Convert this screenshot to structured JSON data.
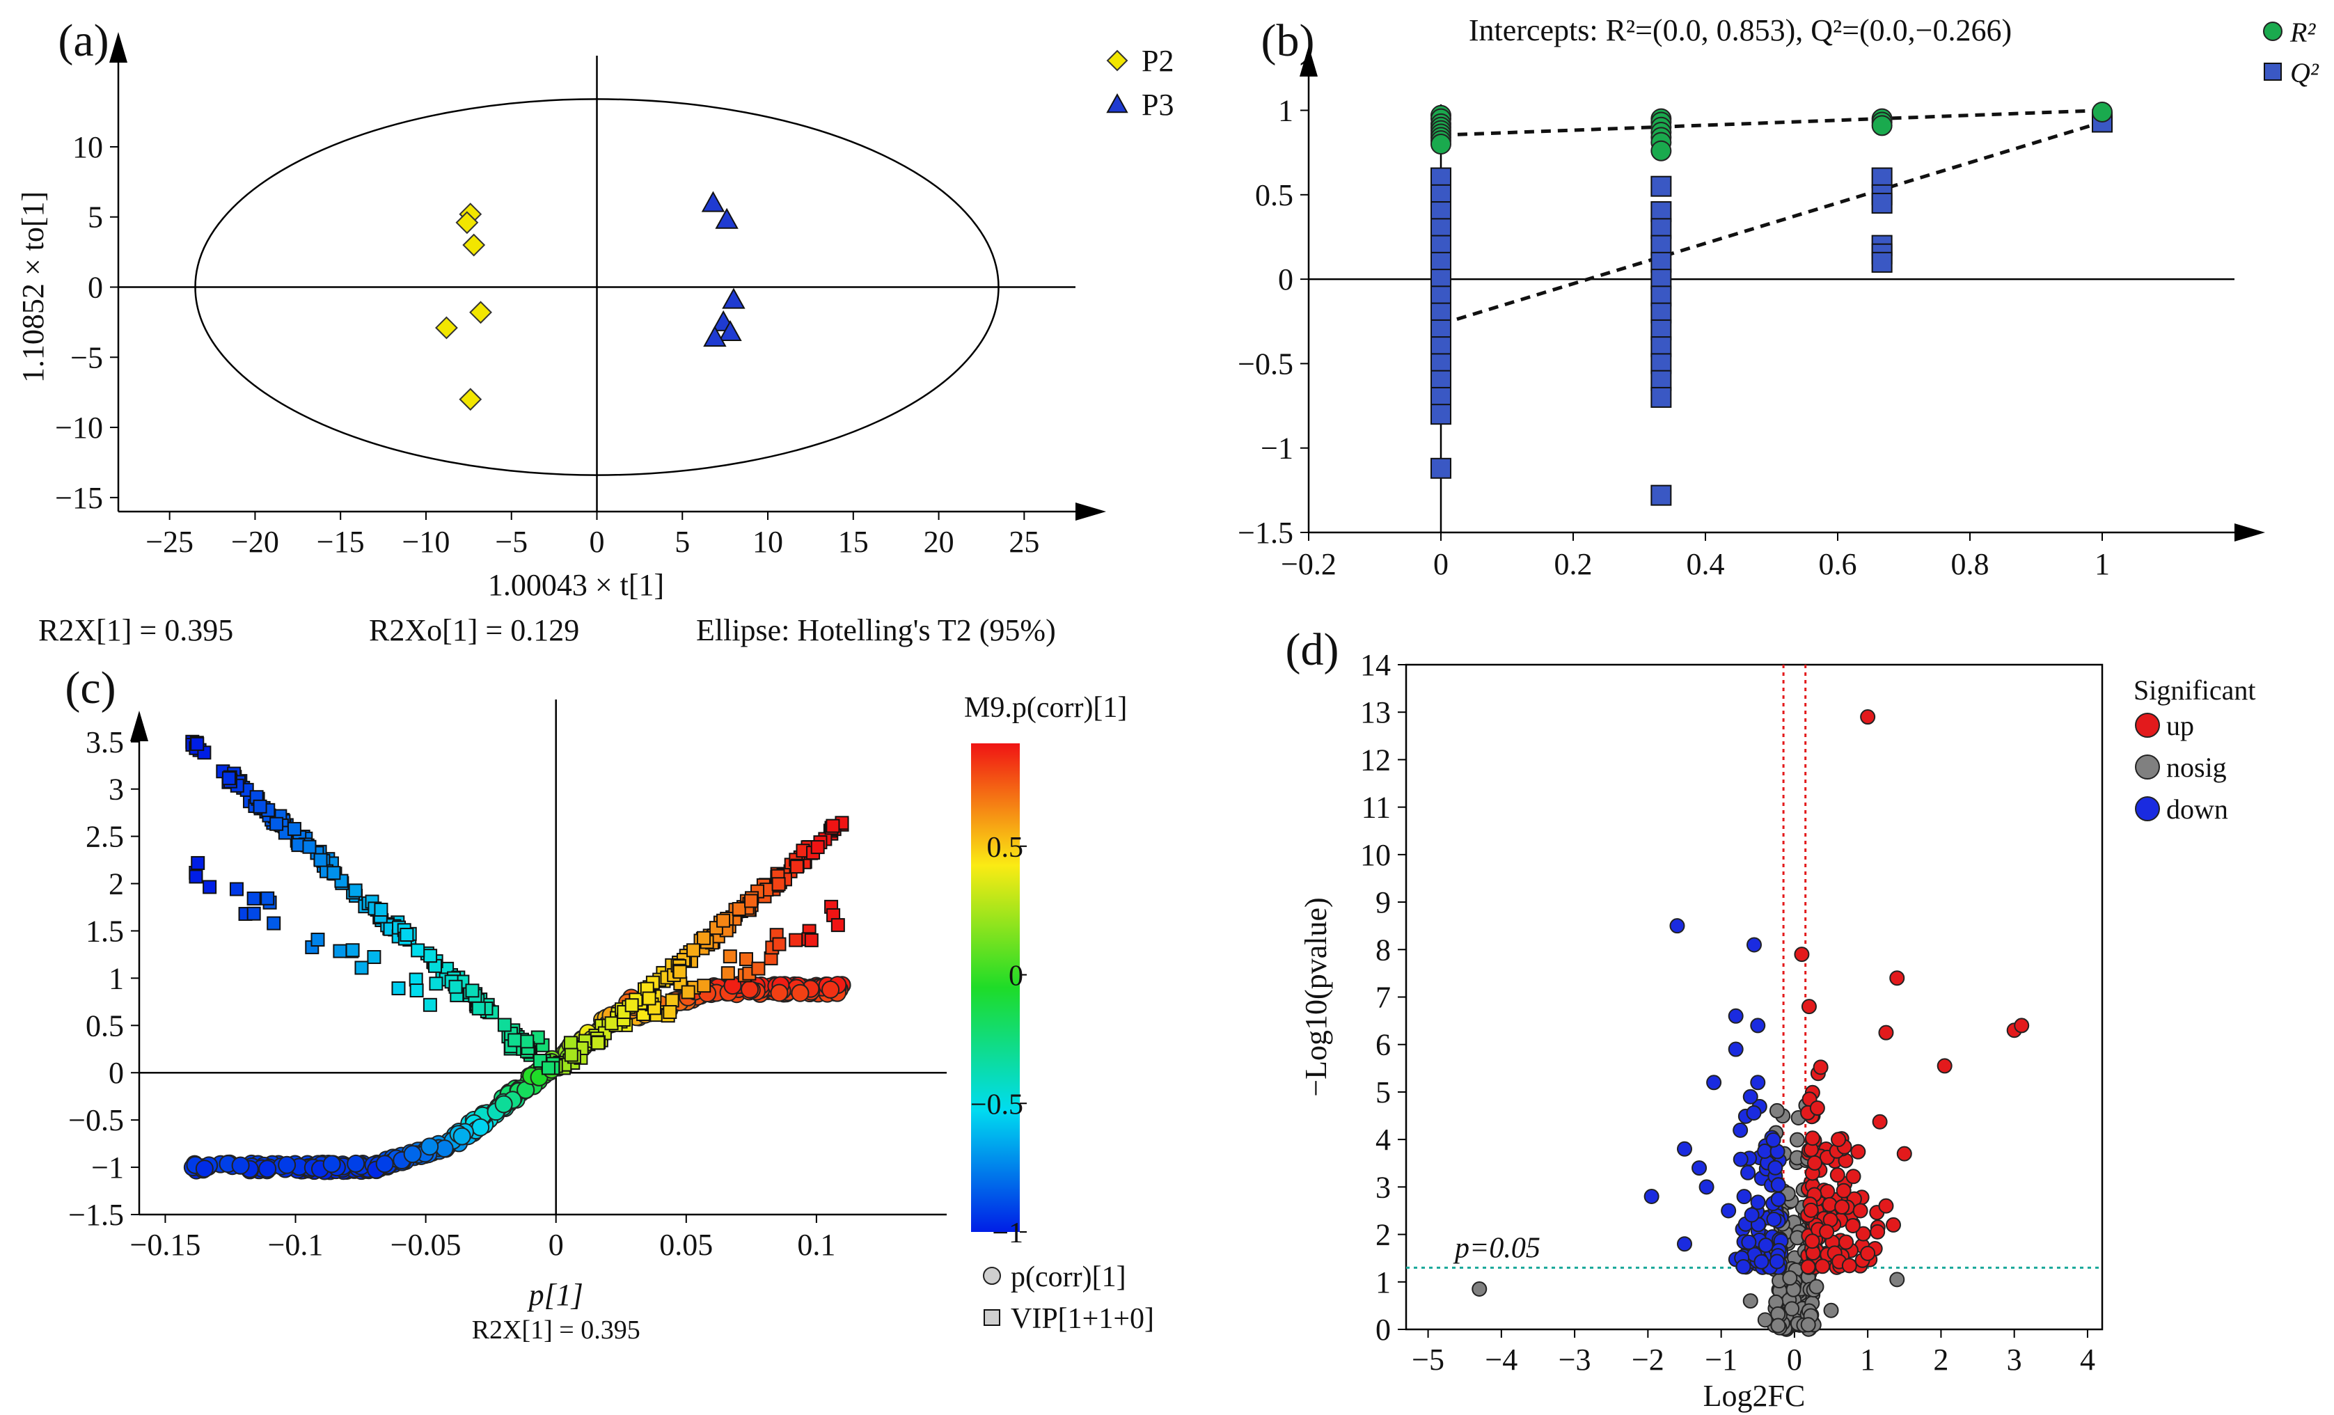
{
  "chart_data": [
    {
      "panel": "a",
      "type": "scatter",
      "panel_label": "(a)",
      "xlabel": "1.00043 × t[1]",
      "ylabel": "1.10852 × to[1]",
      "xticks": [
        -25,
        -20,
        -15,
        -10,
        -5,
        0,
        5,
        10,
        15,
        20,
        25
      ],
      "yticks": [
        -15,
        -10,
        -5,
        0,
        5,
        10
      ],
      "xlim": [
        -28,
        28
      ],
      "ylim": [
        -16,
        16
      ],
      "ellipse": {
        "cx": 0,
        "cy": 0,
        "rx": 23.5,
        "ry": 13.4
      },
      "series": [
        {
          "name": "P2",
          "marker": "diamond",
          "color": "#f2e600",
          "points": [
            [
              -7.4,
              5.2
            ],
            [
              -7.6,
              4.6
            ],
            [
              -7.2,
              3.0
            ],
            [
              -8.8,
              -2.9
            ],
            [
              -6.8,
              -1.8
            ],
            [
              -7.4,
              -8.0
            ]
          ]
        },
        {
          "name": "P3",
          "marker": "triangle",
          "color": "#1f3bd1",
          "points": [
            [
              6.8,
              6.0
            ],
            [
              7.6,
              4.8
            ],
            [
              8.0,
              -0.9
            ],
            [
              7.4,
              -2.5
            ],
            [
              7.8,
              -3.2
            ],
            [
              6.9,
              -3.6
            ]
          ]
        }
      ],
      "footer": [
        "R2X[1] = 0.395",
        "R2Xo[1] = 0.129",
        "Ellipse: Hotelling's T2 (95%)"
      ]
    },
    {
      "panel": "b",
      "type": "scatter",
      "panel_label": "(b)",
      "title": "Intercepts: R²=(0.0, 0.853), Q²=(0.0,−0.266)",
      "xticks": [
        -0.2,
        0,
        0.2,
        0.4,
        0.6,
        0.8,
        1
      ],
      "yticks": [
        -1.5,
        -1,
        -0.5,
        0,
        0.5,
        1
      ],
      "xlim": [
        -0.2,
        1.2
      ],
      "ylim": [
        -1.5,
        1.2
      ],
      "legend": [
        "R²",
        "Q²"
      ],
      "series": [
        {
          "name": "R²",
          "marker": "circle",
          "color": "#1aaa4e",
          "points": [
            [
              0,
              0.97
            ],
            [
              0,
              0.95
            ],
            [
              0,
              0.92
            ],
            [
              0,
              0.9
            ],
            [
              0,
              0.88
            ],
            [
              0,
              0.86
            ],
            [
              0,
              0.84
            ],
            [
              0,
              0.82
            ],
            [
              0,
              0.8
            ],
            [
              0.333,
              0.95
            ],
            [
              0.333,
              0.93
            ],
            [
              0.333,
              0.9
            ],
            [
              0.333,
              0.87
            ],
            [
              0.333,
              0.84
            ],
            [
              0.333,
              0.81
            ],
            [
              0.333,
              0.76
            ],
            [
              0.667,
              0.95
            ],
            [
              0.667,
              0.93
            ],
            [
              0.667,
              0.91
            ],
            [
              1,
              0.99
            ]
          ]
        },
        {
          "name": "Q²",
          "marker": "square",
          "color": "#3a58c4",
          "points": [
            [
              0,
              0.6
            ],
            [
              0,
              0.5
            ],
            [
              0,
              0.4
            ],
            [
              0,
              0.3
            ],
            [
              0,
              0.2
            ],
            [
              0,
              0.1
            ],
            [
              0,
              0.0
            ],
            [
              0,
              -0.1
            ],
            [
              0,
              -0.2
            ],
            [
              0,
              -0.3
            ],
            [
              0,
              -0.4
            ],
            [
              0,
              -0.5
            ],
            [
              0,
              -0.6
            ],
            [
              0,
              -0.7
            ],
            [
              0,
              -0.8
            ],
            [
              0,
              -1.12
            ],
            [
              0.333,
              0.55
            ],
            [
              0.333,
              0.4
            ],
            [
              0.333,
              0.3
            ],
            [
              0.333,
              0.2
            ],
            [
              0.333,
              0.1
            ],
            [
              0.333,
              0.0
            ],
            [
              0.333,
              -0.1
            ],
            [
              0.333,
              -0.2
            ],
            [
              0.333,
              -0.3
            ],
            [
              0.333,
              -0.4
            ],
            [
              0.333,
              -0.5
            ],
            [
              0.333,
              -0.6
            ],
            [
              0.333,
              -0.7
            ],
            [
              0.333,
              -1.28
            ],
            [
              0.667,
              0.6
            ],
            [
              0.667,
              0.5
            ],
            [
              0.667,
              0.45
            ],
            [
              0.667,
              0.2
            ],
            [
              0.667,
              0.15
            ],
            [
              0.667,
              0.1
            ],
            [
              1,
              0.93
            ]
          ]
        }
      ],
      "regression_lines": [
        {
          "name": "R²",
          "from": [
            0,
            0.853
          ],
          "to": [
            1,
            1.0
          ]
        },
        {
          "name": "Q²",
          "from": [
            0,
            -0.266
          ],
          "to": [
            1,
            0.93
          ]
        }
      ]
    },
    {
      "panel": "c",
      "type": "scatter",
      "panel_label": "(c)",
      "xlabel": "p[1]",
      "xlabel_sub": "R2X[1] = 0.395",
      "xticks": [
        -0.15,
        -0.1,
        -0.05,
        0,
        0.05,
        0.1
      ],
      "yticks": [
        -1.5,
        -1,
        -0.5,
        0,
        0.5,
        1,
        1.5,
        2,
        2.5,
        3,
        3.5
      ],
      "xlim": [
        -0.16,
        0.15
      ],
      "ylim": [
        -1.5,
        3.8
      ],
      "colorbar": {
        "title": "M9.p(corr)[1]",
        "ticks": [
          "0.5",
          "0",
          "−0.5",
          "−1"
        ],
        "range": [
          -1,
          0.9
        ]
      },
      "legend": [
        "p(corr)[1]",
        "VIP[1+1+0]"
      ],
      "series": [
        {
          "name": "p(corr)[1]",
          "marker": "circle",
          "description": "curve from (-0.14,-1.0) rising to (0,0) then plateau near 0.9 at x=0.1"
        },
        {
          "name": "VIP[1+1+0]",
          "marker": "square",
          "description": "V-shape from (-0.14,3.5) down to (0,0) up to (0.11,2.65)"
        }
      ]
    },
    {
      "panel": "d",
      "type": "scatter",
      "panel_label": "(d)",
      "xlabel": "Log2FC",
      "ylabel": "−Log10(pvalue)",
      "xticks": [
        -5,
        -4,
        -3,
        -2,
        -1,
        0,
        1,
        2,
        3,
        4
      ],
      "yticks": [
        0,
        1,
        2,
        3,
        4,
        5,
        6,
        7,
        8,
        9,
        10,
        11,
        12,
        13,
        14
      ],
      "xlim": [
        -5.3,
        4.2
      ],
      "ylim": [
        0,
        14
      ],
      "threshold_label": "p=0.05",
      "threshold_y": 1.3,
      "vlines": [
        -0.15,
        0.15
      ],
      "legend_title": "Significant",
      "legend": [
        "up",
        "nosig",
        "down"
      ],
      "series": [
        {
          "name": "up",
          "color": "#e31a1c",
          "points": [
            [
              1.0,
              12.9
            ],
            [
              0.1,
              7.9
            ],
            [
              1.4,
              7.4
            ],
            [
              0.2,
              6.8
            ],
            [
              1.25,
              6.25
            ],
            [
              3.0,
              6.3
            ],
            [
              3.1,
              6.4
            ],
            [
              2.05,
              5.55
            ],
            [
              1.5,
              3.7
            ],
            [
              0.6,
              4.0
            ],
            [
              1.25,
              2.6
            ],
            [
              1.35,
              2.2
            ],
            [
              0.9,
              2.5
            ],
            [
              1.1,
              1.7
            ],
            [
              1.0,
              1.6
            ]
          ]
        },
        {
          "name": "down",
          "color": "#1a2be0",
          "points": [
            [
              -1.6,
              8.5
            ],
            [
              -0.55,
              8.1
            ],
            [
              -0.8,
              6.6
            ],
            [
              -0.5,
              6.4
            ],
            [
              -0.8,
              5.9
            ],
            [
              -1.1,
              5.2
            ],
            [
              -0.5,
              5.2
            ],
            [
              -0.6,
              4.9
            ],
            [
              -1.3,
              3.4
            ],
            [
              -1.5,
              3.8
            ],
            [
              -1.95,
              2.8
            ],
            [
              -1.5,
              1.8
            ],
            [
              -1.2,
              3.0
            ],
            [
              -0.9,
              2.5
            ]
          ]
        },
        {
          "name": "nosig",
          "color": "#808080",
          "points": [
            [
              -4.3,
              0.85
            ],
            [
              1.4,
              1.05
            ],
            [
              -0.6,
              0.6
            ],
            [
              -0.4,
              0.2
            ],
            [
              0.3,
              0.9
            ],
            [
              0.5,
              0.4
            ]
          ]
        }
      ]
    }
  ]
}
